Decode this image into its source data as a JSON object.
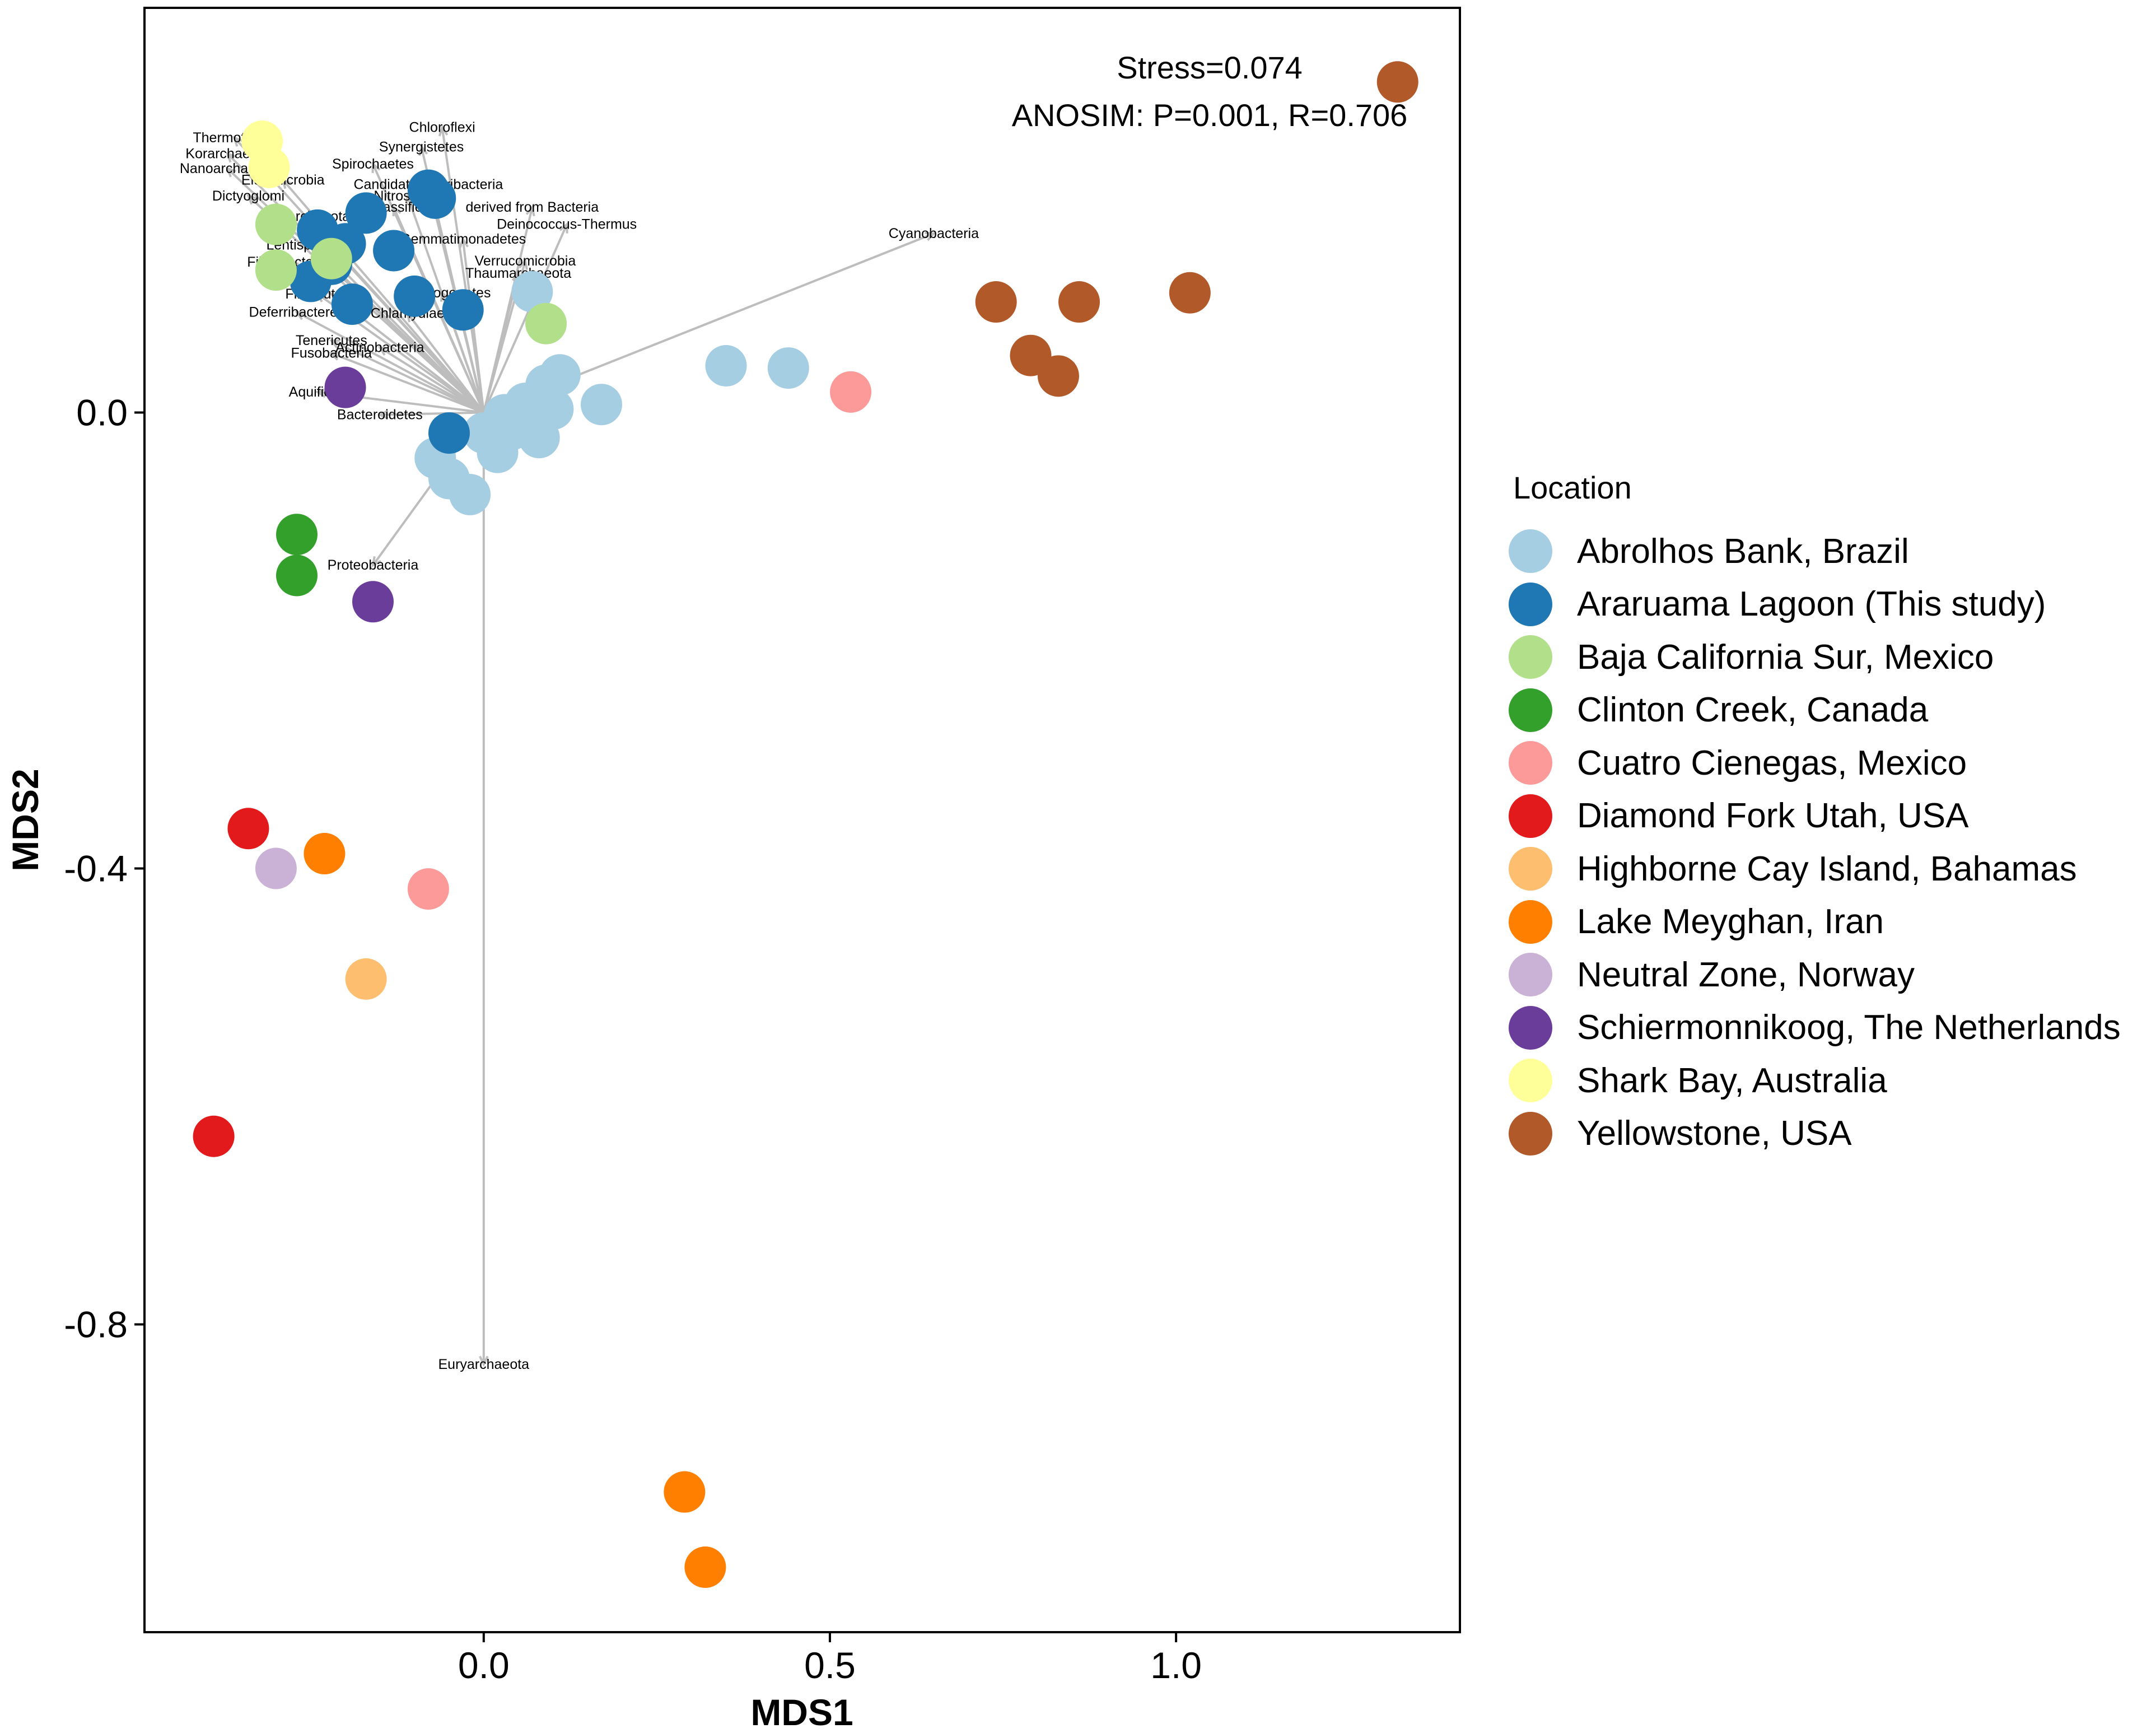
{
  "chart_data": {
    "type": "scatter",
    "title": "",
    "xlabel": "MDS1",
    "ylabel": "MDS2",
    "xlim": [
      -0.49,
      1.41
    ],
    "ylim": [
      -1.07,
      0.355
    ],
    "xticks": [
      0.0,
      0.5,
      1.0
    ],
    "xtick_labels": [
      "0.0",
      "0.5",
      "1.0"
    ],
    "yticks": [
      0.0,
      -0.4,
      -0.8
    ],
    "ytick_labels": [
      "0.0",
      "-0.4",
      "-0.8"
    ],
    "grid": false,
    "annotations": [
      "Stress=0.074",
      "ANOSIM: P=0.001, R=0.706"
    ],
    "legend_title": "Location",
    "legend_position": "right",
    "series": [
      {
        "name": "Abrolhos Bank, Brazil",
        "color": "#A6CEE3",
        "points": [
          [
            0.07,
            0.106
          ],
          [
            0.35,
            0.041
          ],
          [
            0.44,
            0.039
          ],
          [
            0.17,
            0.007
          ],
          [
            0.11,
            0.033
          ],
          [
            0.09,
            0.024
          ],
          [
            0.06,
            0.008
          ],
          [
            0.03,
            -0.002
          ],
          [
            0.07,
            -0.005
          ],
          [
            0.1,
            0.003
          ],
          [
            0.04,
            -0.015
          ],
          [
            0.0,
            -0.018
          ],
          [
            0.08,
            -0.022
          ],
          [
            0.02,
            -0.035
          ],
          [
            -0.07,
            -0.04
          ],
          [
            -0.05,
            -0.058
          ],
          [
            -0.02,
            -0.072
          ]
        ]
      },
      {
        "name": "Araruama Lagoon (This study)",
        "color": "#1F78B4",
        "points": [
          [
            -0.08,
            0.195
          ],
          [
            -0.07,
            0.188
          ],
          [
            -0.17,
            0.175
          ],
          [
            -0.24,
            0.16
          ],
          [
            -0.2,
            0.148
          ],
          [
            -0.13,
            0.142
          ],
          [
            -0.22,
            0.13
          ],
          [
            -0.25,
            0.115
          ],
          [
            -0.1,
            0.102
          ],
          [
            -0.19,
            0.095
          ],
          [
            -0.03,
            0.09
          ],
          [
            -0.05,
            -0.018
          ]
        ]
      },
      {
        "name": "Baja California Sur, Mexico",
        "color": "#B2DF8A",
        "points": [
          [
            0.09,
            0.078
          ],
          [
            -0.3,
            0.165
          ],
          [
            -0.22,
            0.135
          ],
          [
            -0.3,
            0.125
          ]
        ]
      },
      {
        "name": "Clinton Creek, Canada",
        "color": "#33A02C",
        "points": [
          [
            -0.27,
            -0.107
          ],
          [
            -0.27,
            -0.143
          ]
        ]
      },
      {
        "name": "Cuatro Cienegas, Mexico",
        "color": "#FB9A99",
        "points": [
          [
            0.53,
            0.018
          ],
          [
            -0.08,
            -0.418
          ]
        ]
      },
      {
        "name": "Diamond Fork Utah, USA",
        "color": "#E31A1C",
        "points": [
          [
            -0.34,
            -0.365
          ],
          [
            -0.39,
            -0.635
          ]
        ]
      },
      {
        "name": "Highborne Cay Island, Bahamas",
        "color": "#FDBF6F",
        "points": [
          [
            -0.17,
            -0.497
          ]
        ]
      },
      {
        "name": "Lake Meyghan, Iran",
        "color": "#FF7F00",
        "points": [
          [
            -0.23,
            -0.387
          ],
          [
            0.29,
            -0.947
          ],
          [
            0.32,
            -1.013
          ]
        ]
      },
      {
        "name": "Neutral Zone, Norway",
        "color": "#CAB2D6",
        "points": [
          [
            -0.3,
            -0.4
          ]
        ]
      },
      {
        "name": "Schiermonnikoog, The Netherlands",
        "color": "#6A3D9A",
        "points": [
          [
            -0.2,
            0.022
          ],
          [
            -0.16,
            -0.166
          ]
        ]
      },
      {
        "name": "Shark Bay, Australia",
        "color": "#FFFF99",
        "points": [
          [
            -0.32,
            0.238
          ],
          [
            -0.31,
            0.215
          ]
        ]
      },
      {
        "name": "Yellowstone, USA",
        "color": "#B15928",
        "points": [
          [
            1.32,
            0.29
          ],
          [
            1.02,
            0.105
          ],
          [
            0.86,
            0.097
          ],
          [
            0.74,
            0.097
          ],
          [
            0.79,
            0.05
          ],
          [
            0.83,
            0.032
          ]
        ]
      }
    ],
    "vectors": [
      {
        "name": "Chloroflexi",
        "end": [
          -0.06,
          0.25
        ]
      },
      {
        "name": "Synergistetes",
        "end": [
          -0.09,
          0.233
        ]
      },
      {
        "name": "Spirochaetes",
        "end": [
          -0.16,
          0.218
        ]
      },
      {
        "name": "Candidatus Poribacteria",
        "end": [
          -0.08,
          0.2
        ]
      },
      {
        "name": "Nitrospirae",
        "end": [
          -0.11,
          0.19
        ]
      },
      {
        "name": "unclassified",
        "end": [
          -0.13,
          0.18
        ]
      },
      {
        "name": "derived from Bacteria",
        "end": [
          0.07,
          0.18
        ]
      },
      {
        "name": "Deinococcus-Thermus",
        "end": [
          0.12,
          0.165
        ]
      },
      {
        "name": "Gemmatimonadetes",
        "end": [
          -0.03,
          0.152
        ]
      },
      {
        "name": "Verrucomicrobia",
        "end": [
          0.06,
          0.133
        ]
      },
      {
        "name": "Thaumarchaeota",
        "end": [
          0.05,
          0.122
        ]
      },
      {
        "name": "Chrysiogenetes",
        "end": [
          -0.06,
          0.105
        ]
      },
      {
        "name": "Chlamydiae",
        "end": [
          -0.11,
          0.087
        ]
      },
      {
        "name": "Thermotogae",
        "end": [
          -0.36,
          0.241
        ]
      },
      {
        "name": "Korarchaeota",
        "end": [
          -0.37,
          0.227
        ]
      },
      {
        "name": "Nanoarchaeota",
        "end": [
          -0.37,
          0.214
        ]
      },
      {
        "name": "Elusimicrobia",
        "end": [
          -0.29,
          0.204
        ]
      },
      {
        "name": "Dictyoglomi",
        "end": [
          -0.34,
          0.19
        ]
      },
      {
        "name": "Crenarchaeota",
        "end": [
          -0.26,
          0.172
        ]
      },
      {
        "name": "Lentisphaerae",
        "end": [
          -0.25,
          0.147
        ]
      },
      {
        "name": "Fibrobacteres",
        "end": [
          -0.28,
          0.132
        ]
      },
      {
        "name": "Firmicutes",
        "end": [
          -0.24,
          0.104
        ]
      },
      {
        "name": "Deferribacteres",
        "end": [
          -0.27,
          0.088
        ]
      },
      {
        "name": "Tenericutes",
        "end": [
          -0.22,
          0.063
        ]
      },
      {
        "name": "Fusobacteria",
        "end": [
          -0.22,
          0.052
        ]
      },
      {
        "name": "Actinobacteria",
        "end": [
          -0.15,
          0.057
        ]
      },
      {
        "name": "Aquificae",
        "end": [
          -0.24,
          0.018
        ]
      },
      {
        "name": "Bacteroidetes",
        "end": [
          -0.15,
          -0.002
        ]
      },
      {
        "name": "Proteobacteria",
        "end": [
          -0.16,
          -0.134
        ]
      },
      {
        "name": "Cyanobacteria",
        "end": [
          0.65,
          0.157
        ]
      },
      {
        "name": "Euryarchaeota",
        "end": [
          0.0,
          -0.835
        ]
      }
    ]
  }
}
